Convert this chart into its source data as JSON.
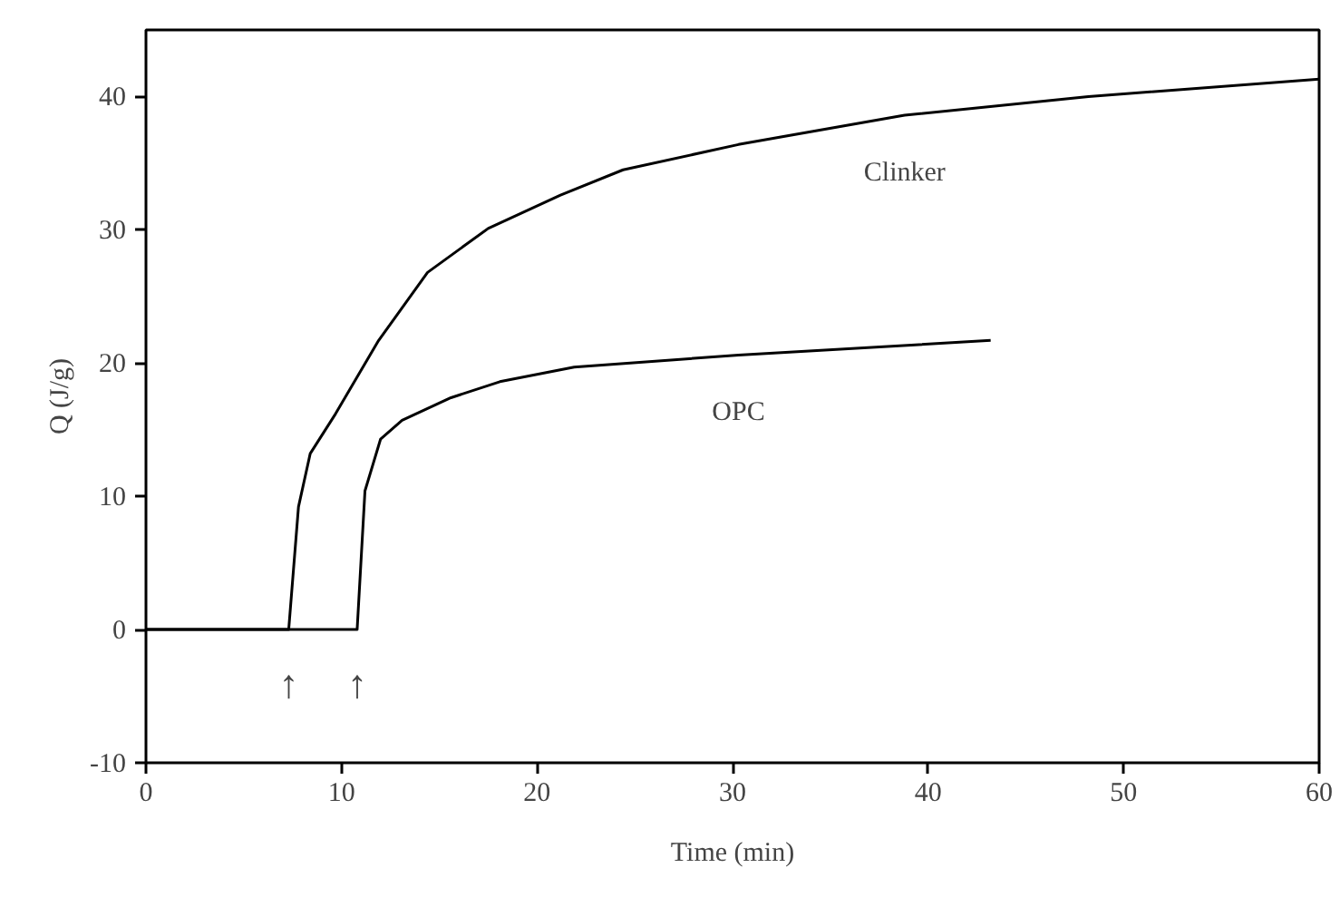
{
  "chart_data": {
    "type": "line",
    "xlabel": "Time (min)",
    "ylabel": "Q (J/g)",
    "xlim": [
      0,
      60
    ],
    "ylim": [
      -10,
      45
    ],
    "xticks": [
      0,
      10,
      20,
      30,
      40,
      50,
      60
    ],
    "yticks": [
      -10,
      0,
      10,
      20,
      30,
      40
    ],
    "grid": false,
    "legend": false,
    "marker": "none",
    "line_style": "solid",
    "series": [
      {
        "name": "Clinker",
        "color": "#000000",
        "x": [
          0,
          7.3,
          7.8,
          8.4,
          9.7,
          11.9,
          14.4,
          17.5,
          21.2,
          24.4,
          30.3,
          38.8,
          48.2,
          60
        ],
        "values": [
          0,
          0,
          9.2,
          13.2,
          16.2,
          21.7,
          26.8,
          30.1,
          32.6,
          34.5,
          36.4,
          38.6,
          40,
          41.3
        ]
      },
      {
        "name": "OPC",
        "color": "#000000",
        "x": [
          0,
          10.8,
          11.2,
          12,
          13.1,
          15.6,
          18.1,
          21.9,
          30.3,
          43.2
        ],
        "values": [
          0,
          0,
          10.4,
          14.3,
          15.7,
          17.4,
          18.6,
          19.7,
          20.6,
          21.7
        ]
      }
    ],
    "annotations": [
      "↑",
      "↑"
    ]
  }
}
